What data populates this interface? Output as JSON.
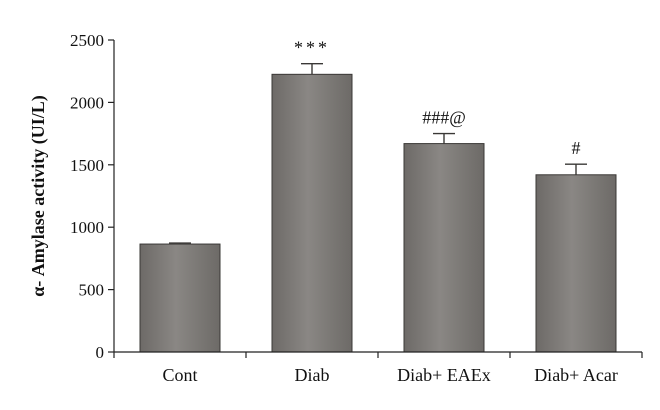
{
  "chart_data": {
    "type": "bar",
    "title": "",
    "xlabel": "",
    "ylabel": "α- Amylase activity (UI/L)",
    "categories": [
      "Cont",
      "Diab",
      "Diab+ EAEx",
      "Diab+ Acar"
    ],
    "values": [
      865,
      2225,
      1670,
      1420
    ],
    "errors": [
      8,
      85,
      80,
      85
    ],
    "annotations": [
      "",
      "***",
      "###@",
      "#"
    ],
    "ylim": [
      0,
      2500
    ],
    "yticks": [
      0,
      500,
      1000,
      1500,
      2000,
      2500
    ],
    "ytick_labels": [
      "0",
      "500",
      "1000",
      "1500",
      "2000",
      "2500"
    ],
    "grid": false,
    "legend": "none",
    "colors": {
      "bar_fill": "#6d6a67",
      "bar_fill_highlight": "#8a8784",
      "bar_edge": "#3a3836",
      "axis": "#222222"
    }
  }
}
